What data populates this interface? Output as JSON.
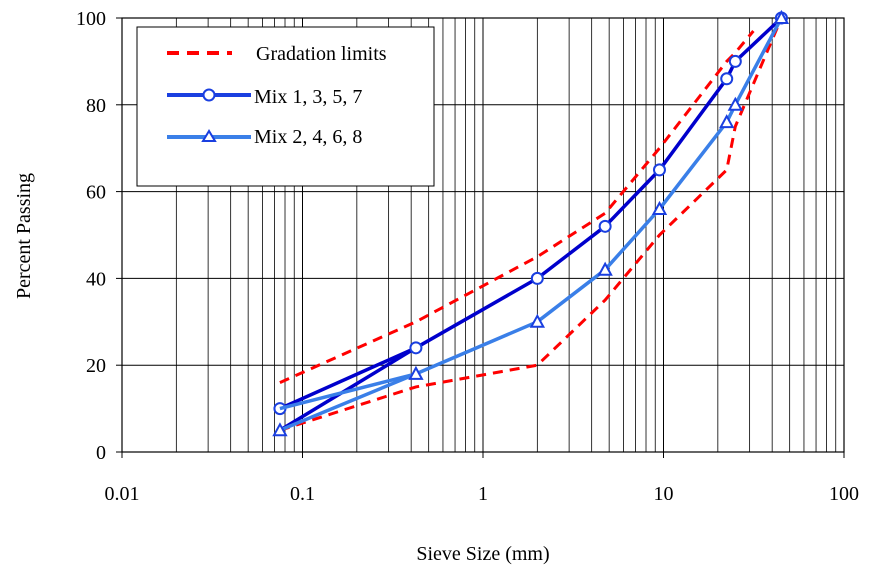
{
  "chart_data": {
    "type": "line",
    "x_scale": "log",
    "xlim": [
      0.01,
      100
    ],
    "ylim": [
      0,
      100
    ],
    "xticks": [
      0.01,
      0.1,
      1,
      10,
      100
    ],
    "xtick_labels": [
      "0.01",
      "0.1",
      "1",
      "10",
      "100"
    ],
    "yticks": [
      0,
      20,
      40,
      60,
      80,
      100
    ],
    "ytick_labels": [
      "0",
      "20",
      "40",
      "60",
      "80",
      "100"
    ],
    "xlabel": "Sieve Size (mm)",
    "ylabel": "Percent Passing",
    "grid": "vertical minor and major, horizontal major",
    "legend_position": "top-left",
    "colors": {
      "limits": "#ff0000",
      "mix_odd": "#0000cc",
      "mix_even": "#3a7fe8"
    },
    "series": [
      {
        "name": "Gradation limits",
        "style": "dashed",
        "segments": [
          {
            "x": [
              0.075,
              0.425,
              2.0,
              4.75,
              9.5,
              22.4,
              25,
              31.5
            ],
            "y": [
              16,
              30,
              45,
              55,
              70,
              90,
              92,
              97
            ]
          },
          {
            "x": [
              0.075,
              0.425,
              2.0,
              4.75,
              9.5,
              22.4,
              25,
              45
            ],
            "y": [
              5,
              15,
              20,
              35,
              50,
              65,
              75,
              100
            ]
          }
        ]
      },
      {
        "name": "Mix 1, 3, 5, 7",
        "marker": "circle",
        "segments": [
          {
            "x": [
              0.075,
              0.425,
              2.0,
              4.75,
              9.5,
              22.4,
              25,
              45
            ],
            "y": [
              10,
              24,
              40,
              52,
              65,
              86,
              90,
              100
            ]
          },
          {
            "x": [
              0.075,
              0.425
            ],
            "y": [
              5,
              24
            ]
          }
        ]
      },
      {
        "name": "Mix 2, 4, 6, 8",
        "marker": "triangle",
        "segments": [
          {
            "x": [
              0.075,
              0.425,
              2.0,
              4.75,
              9.5,
              22.4,
              25,
              45
            ],
            "y": [
              5,
              18,
              30,
              42,
              56,
              76,
              80,
              100
            ]
          },
          {
            "x": [
              0.075,
              0.425
            ],
            "y": [
              10,
              18
            ]
          }
        ]
      }
    ]
  }
}
